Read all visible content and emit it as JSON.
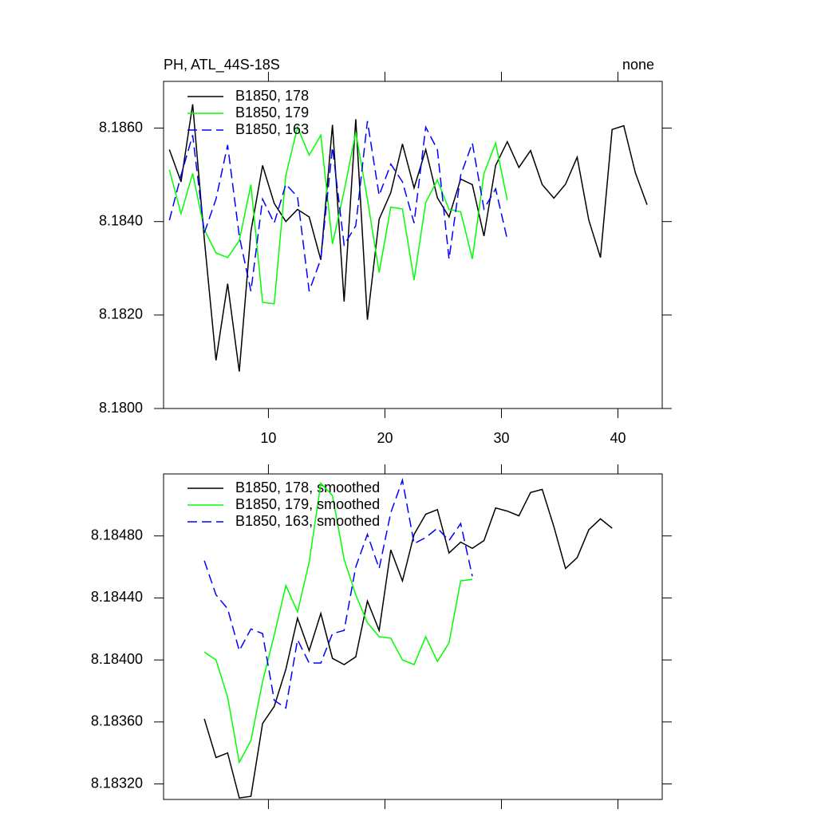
{
  "chart_data": [
    {
      "type": "line",
      "title": "PH, ATL_44S-18S",
      "subtitle": "none",
      "xlim": [
        1,
        43.8
      ],
      "xticks": [
        10,
        20,
        30,
        40
      ],
      "ylim": [
        8.18,
        8.187
      ],
      "yticks": [
        {
          "value": 8.18,
          "label": "8.1800"
        },
        {
          "value": 8.182,
          "label": "8.1820"
        },
        {
          "value": 8.184,
          "label": "8.1840"
        },
        {
          "value": 8.186,
          "label": "8.1860"
        }
      ],
      "series": [
        {
          "name": "B1850, 178",
          "color": "#000000",
          "line_style": "solid",
          "x": [
            1.5,
            2.5,
            3.5,
            4.5,
            5.5,
            6.5,
            7.5,
            8.5,
            9.5,
            10.5,
            11.5,
            12.5,
            13.5,
            14.5,
            15.5,
            16.5,
            17.5,
            18.5,
            19.5,
            20.5,
            21.5,
            22.5,
            23.5,
            24.5,
            25.5,
            26.5,
            27.5,
            28.5,
            29.5,
            30.5,
            31.5,
            32.5,
            33.5,
            34.5,
            35.5,
            36.5,
            37.5,
            38.5,
            39.5,
            40.5,
            41.5,
            42.5
          ],
          "values": [
            8.18554,
            8.18485,
            8.18651,
            8.18362,
            8.18103,
            8.18267,
            8.18079,
            8.18379,
            8.1852,
            8.18439,
            8.184,
            8.18426,
            8.1841,
            8.18318,
            8.18607,
            8.18229,
            8.18619,
            8.1819,
            8.18405,
            8.18462,
            8.18566,
            8.18472,
            8.18554,
            8.18451,
            8.1841,
            8.18491,
            8.18479,
            8.18369,
            8.1852,
            8.18571,
            8.18516,
            8.18552,
            8.18479,
            8.1845,
            8.1848,
            8.18538,
            8.18403,
            8.18323,
            8.18597,
            8.18605,
            8.18504,
            8.18436
          ]
        },
        {
          "name": "B1850, 179",
          "color": "#00ff00",
          "line_style": "solid",
          "x": [
            1.5,
            2.5,
            3.5,
            4.5,
            5.5,
            6.5,
            7.5,
            8.5,
            9.5,
            10.5,
            11.5,
            12.5,
            13.5,
            14.5,
            15.5,
            16.5,
            17.5,
            18.5,
            19.5,
            20.5,
            21.5,
            22.5,
            23.5,
            24.5,
            25.5,
            26.5,
            27.5,
            28.5,
            29.5,
            30.5
          ],
          "values": [
            8.18511,
            8.18417,
            8.18503,
            8.18383,
            8.18333,
            8.18323,
            8.18359,
            8.18479,
            8.18227,
            8.18224,
            8.18499,
            8.18602,
            8.18542,
            8.18585,
            8.18352,
            8.18465,
            8.18591,
            8.18448,
            8.18291,
            8.18431,
            8.18427,
            8.18275,
            8.18441,
            8.18489,
            8.18426,
            8.18421,
            8.1832,
            8.18503,
            8.18568,
            8.18446
          ]
        },
        {
          "name": "B1850, 163",
          "color": "#0000ff",
          "line_style": "dashed",
          "x": [
            1.5,
            2.5,
            3.5,
            4.5,
            5.5,
            6.5,
            7.5,
            8.5,
            9.5,
            10.5,
            11.5,
            12.5,
            13.5,
            14.5,
            15.5,
            16.5,
            17.5,
            18.5,
            19.5,
            20.5,
            21.5,
            22.5,
            23.5,
            24.5,
            25.5,
            26.5,
            27.5,
            28.5,
            29.5,
            30.5
          ],
          "values": [
            8.18403,
            8.18499,
            8.18585,
            8.18376,
            8.18448,
            8.18564,
            8.18369,
            8.18251,
            8.18448,
            8.18397,
            8.1848,
            8.18453,
            8.18251,
            8.1832,
            8.18559,
            8.1835,
            8.18391,
            8.18615,
            8.18456,
            8.18523,
            8.18485,
            8.18397,
            8.18602,
            8.18554,
            8.1832,
            8.18499,
            8.18568,
            8.18427,
            8.1847,
            8.18362
          ]
        }
      ]
    },
    {
      "type": "line",
      "xlim": [
        1,
        43.8
      ],
      "xticks": [
        10,
        20,
        30,
        40
      ],
      "ylim": [
        8.1831,
        8.1852
      ],
      "yticks": [
        {
          "value": 8.1832,
          "label": "8.18320"
        },
        {
          "value": 8.1836,
          "label": "8.18360"
        },
        {
          "value": 8.184,
          "label": "8.18400"
        },
        {
          "value": 8.1844,
          "label": "8.18440"
        },
        {
          "value": 8.1848,
          "label": "8.18480"
        }
      ],
      "series": [
        {
          "name": "B1850, 178, smoothed",
          "color": "#000000",
          "line_style": "solid",
          "x": [
            4.5,
            5.5,
            6.5,
            7.5,
            8.5,
            9.5,
            10.5,
            11.5,
            12.5,
            13.5,
            14.5,
            15.5,
            16.5,
            17.5,
            18.5,
            19.5,
            20.5,
            21.5,
            22.5,
            23.5,
            24.5,
            25.5,
            26.5,
            27.5,
            28.5,
            29.5,
            30.5,
            31.5,
            32.5,
            33.5,
            34.5,
            35.5,
            36.5,
            37.5,
            38.5,
            39.5
          ],
          "values": [
            8.18362,
            8.18337,
            8.1834,
            8.18311,
            8.18312,
            8.18359,
            8.1837,
            8.18394,
            8.18427,
            8.18406,
            8.1843,
            8.18401,
            8.18397,
            8.18402,
            8.18438,
            8.18419,
            8.18471,
            8.18451,
            8.18481,
            8.18494,
            8.18497,
            8.18469,
            8.18476,
            8.18472,
            8.18477,
            8.18498,
            8.18496,
            8.18493,
            8.18508,
            8.1851,
            8.18486,
            8.18459,
            8.18466,
            8.18484,
            8.18491,
            8.18485
          ]
        },
        {
          "name": "B1850, 179, smoothed",
          "color": "#00ff00",
          "line_style": "solid",
          "x": [
            4.5,
            5.5,
            6.5,
            7.5,
            8.5,
            9.5,
            10.5,
            11.5,
            12.5,
            13.5,
            14.5,
            15.5,
            16.5,
            17.5,
            18.5,
            19.5,
            20.5,
            21.5,
            22.5,
            23.5,
            24.5,
            25.5,
            26.5,
            27.5
          ],
          "values": [
            8.18405,
            8.184,
            8.18376,
            8.18334,
            8.18348,
            8.18386,
            8.18416,
            8.18448,
            8.18431,
            8.18463,
            8.18514,
            8.18506,
            8.18465,
            8.18442,
            8.18424,
            8.18415,
            8.18414,
            8.184,
            8.18397,
            8.18415,
            8.18399,
            8.18411,
            8.18451,
            8.18452
          ]
        },
        {
          "name": "B1850, 163, smoothed",
          "color": "#0000ff",
          "line_style": "dashed",
          "x": [
            4.5,
            5.5,
            6.5,
            7.5,
            8.5,
            9.5,
            10.5,
            11.5,
            12.5,
            13.5,
            14.5,
            15.5,
            16.5,
            17.5,
            18.5,
            19.5,
            20.5,
            21.5,
            22.5,
            23.5,
            24.5,
            25.5,
            26.5,
            27.5
          ],
          "values": [
            8.18464,
            8.18442,
            8.18433,
            8.18406,
            8.1842,
            8.18417,
            8.18374,
            8.18369,
            8.18413,
            8.18398,
            8.18398,
            8.18417,
            8.18419,
            8.1846,
            8.18481,
            8.18459,
            8.18495,
            8.18516,
            8.18475,
            8.18479,
            8.18485,
            8.18477,
            8.18488,
            8.18454
          ]
        }
      ]
    }
  ]
}
